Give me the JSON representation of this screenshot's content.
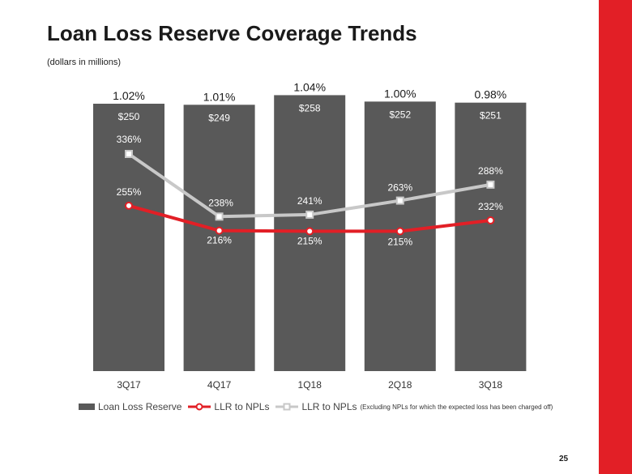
{
  "page": {
    "title": "Loan Loss Reserve Coverage Trends",
    "subtitle": "(dollars in millions)",
    "page_number": "25"
  },
  "colors": {
    "bar": "#595959",
    "llr_line": "#e21f26",
    "llr_excl_line": "#c8c8c8",
    "brand_red": "#e21f26"
  },
  "legend": {
    "bar_label": "Loan Loss Reserve",
    "llr_label": "LLR to NPLs",
    "llr_excl_label": "LLR to NPLs",
    "llr_excl_note": "(Excluding NPLs for which the expected loss has been charged off)"
  },
  "chart_data": {
    "type": "bar",
    "categories": [
      "3Q17",
      "4Q17",
      "1Q18",
      "2Q18",
      "3Q18"
    ],
    "series": [
      {
        "name": "Loan Loss Reserve",
        "type": "bar",
        "values": [
          250,
          249,
          258,
          252,
          251
        ],
        "labels": [
          "$250",
          "$249",
          "$258",
          "$252",
          "$251"
        ],
        "ratio_labels": [
          "1.02%",
          "1.01%",
          "1.04%",
          "1.00%",
          "0.98%"
        ],
        "ratios": [
          1.02,
          1.01,
          1.04,
          1.0,
          0.98
        ]
      },
      {
        "name": "LLR to NPLs",
        "type": "line",
        "values": [
          255,
          216,
          215,
          215,
          232
        ],
        "labels": [
          "255%",
          "216%",
          "215%",
          "215%",
          "232%"
        ]
      },
      {
        "name": "LLR to NPLs (Excluding NPLs for which the expected loss has been charged off)",
        "type": "line",
        "values": [
          336,
          238,
          241,
          263,
          288
        ],
        "labels": [
          "336%",
          "238%",
          "241%",
          "263%",
          "288%"
        ]
      }
    ],
    "title": "Loan Loss Reserve Coverage Trends",
    "xlabel": "",
    "ylabel": "",
    "legend": "bottom"
  }
}
